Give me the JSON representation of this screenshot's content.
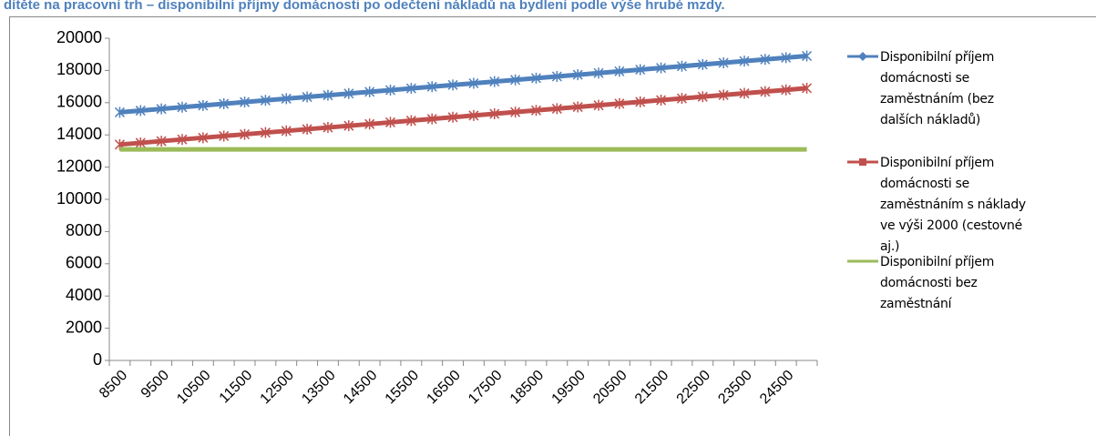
{
  "chart_data": {
    "type": "line",
    "title": "dítěte na pracovní trh – disponibilní příjmy domácnosti po odečtení nákladů na bydlení podle výše hrubé mzdy.",
    "categories": [
      "8500",
      null,
      "9500",
      null,
      "10500",
      null,
      "11500",
      null,
      "12500",
      null,
      "13500",
      null,
      "14500",
      null,
      "15500",
      null,
      "16500",
      null,
      "17500",
      null,
      "18500",
      null,
      "19500",
      null,
      "20500",
      null,
      "21500",
      null,
      "22500",
      null,
      "23500",
      null,
      "24500",
      null
    ],
    "ylim": [
      0,
      20000
    ],
    "yticks": [
      0,
      2000,
      4000,
      6000,
      8000,
      10000,
      12000,
      14000,
      16000,
      18000,
      20000
    ],
    "legend": "right",
    "series": [
      {
        "name": "Disponibilní příjem domácnosti se zaměstnáním (bez dalších nákladů)",
        "color": "#4f81bd",
        "marker": "diamond",
        "values": [
          15400,
          15506,
          15612,
          15718,
          15824,
          15930,
          16036,
          16142,
          16248,
          16354,
          16460,
          16566,
          16672,
          16778,
          16884,
          16990,
          17096,
          17202,
          17308,
          17414,
          17520,
          17626,
          17732,
          17838,
          17944,
          18050,
          18156,
          18262,
          18368,
          18474,
          18580,
          18686,
          18792,
          18898
        ]
      },
      {
        "name": "Disponibilní příjem domácnosti se zaměstnáním s náklady ve výši 2000 (cestovné aj.)",
        "color": "#c0504d",
        "marker": "square",
        "values": [
          13400,
          13506,
          13612,
          13718,
          13824,
          13930,
          14036,
          14142,
          14248,
          14354,
          14460,
          14566,
          14672,
          14778,
          14884,
          14990,
          15096,
          15202,
          15308,
          15414,
          15520,
          15626,
          15732,
          15838,
          15944,
          16050,
          16156,
          16262,
          16368,
          16474,
          16580,
          16686,
          16792,
          16898
        ]
      },
      {
        "name": "Disponibilní příjem domácnosti bez zaměstnání",
        "color": "#9bbb59",
        "marker": "none",
        "values": [
          13100,
          13100,
          13100,
          13100,
          13100,
          13100,
          13100,
          13100,
          13100,
          13100,
          13100,
          13100,
          13100,
          13100,
          13100,
          13100,
          13100,
          13100,
          13100,
          13100,
          13100,
          13100,
          13100,
          13100,
          13100,
          13100,
          13100,
          13100,
          13100,
          13100,
          13100,
          13100,
          13100,
          13100
        ]
      }
    ]
  }
}
